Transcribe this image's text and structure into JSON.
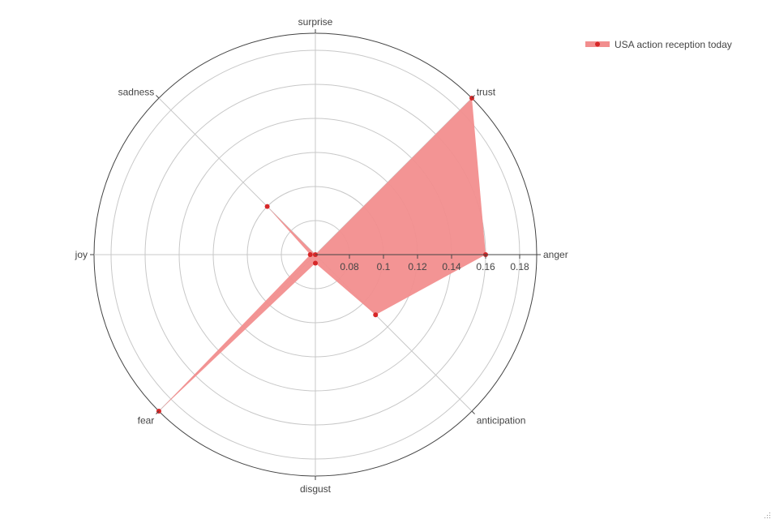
{
  "chart_data": {
    "type": "radar",
    "categories": [
      "anger",
      "anticipation",
      "disgust",
      "fear",
      "joy",
      "sadness",
      "surprise",
      "trust"
    ],
    "series": [
      {
        "name": "USA action reception today",
        "values": [
          0.16,
          0.11,
          0.065,
          0.19,
          0.063,
          0.1,
          0.06,
          0.19
        ],
        "color": "#d62728",
        "fill": "#f28e8e"
      }
    ],
    "radial_axis": {
      "range": [
        0.06,
        0.19
      ],
      "ticks": [
        0.08,
        0.1,
        0.12,
        0.14,
        0.16,
        0.18
      ],
      "tick_labels": [
        "0.08",
        "0.1",
        "0.12",
        "0.14",
        "0.16",
        "0.18"
      ]
    },
    "grid": true,
    "legend": {
      "position": "top-right"
    },
    "title": ""
  }
}
